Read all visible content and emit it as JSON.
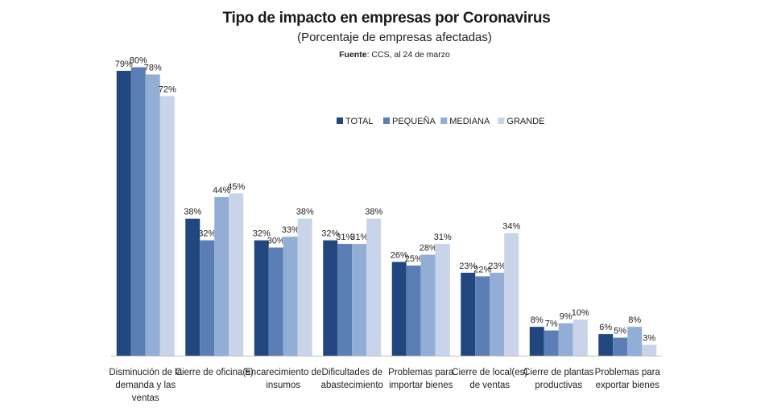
{
  "chart_data": {
    "type": "bar",
    "title": "Tipo de impacto en empresas por Coronavirus",
    "subtitle": "(Porcentaje de empresas afectadas)",
    "source_label": "Fuente",
    "source_text": ": CCS, al 24 de marzo",
    "categories": [
      "Disminución de la demanda y las ventas",
      "Cierre de oficina(s)",
      "Encarecimiento de insumos",
      "Dificultades de abastecimiento",
      "Problemas para importar bienes",
      "Cierre de local(es) de ventas",
      "Cierre de plantas productivas",
      "Problemas para exportar bienes"
    ],
    "category_lines": [
      [
        "Disminución de la",
        "demanda y las",
        "ventas"
      ],
      [
        "Cierre de oficina(s)"
      ],
      [
        "Encarecimiento de",
        "insumos"
      ],
      [
        "Dificultades de",
        "abastecimiento"
      ],
      [
        "Problemas para",
        "importar bienes"
      ],
      [
        "Cierre de local(es)",
        "de ventas"
      ],
      [
        "Cierre de plantas",
        "productivas"
      ],
      [
        "Problemas para",
        "exportar bienes"
      ]
    ],
    "series": [
      {
        "name": "TOTAL",
        "color": "#22477e",
        "values": [
          79,
          38,
          32,
          32,
          26,
          23,
          8,
          6
        ]
      },
      {
        "name": "PEQUEÑA",
        "color": "#5b7fb5",
        "values": [
          80,
          32,
          30,
          31,
          25,
          22,
          7,
          5
        ]
      },
      {
        "name": "MEDIANA",
        "color": "#93aed6",
        "values": [
          78,
          44,
          33,
          31,
          28,
          23,
          9,
          8
        ]
      },
      {
        "name": "GRANDE",
        "color": "#c9d3ea",
        "values": [
          72,
          45,
          38,
          38,
          31,
          34,
          10,
          3
        ]
      }
    ],
    "value_suffix": "%",
    "ylim": [
      0,
      80
    ],
    "grid": false,
    "legend_position": "top-right"
  }
}
